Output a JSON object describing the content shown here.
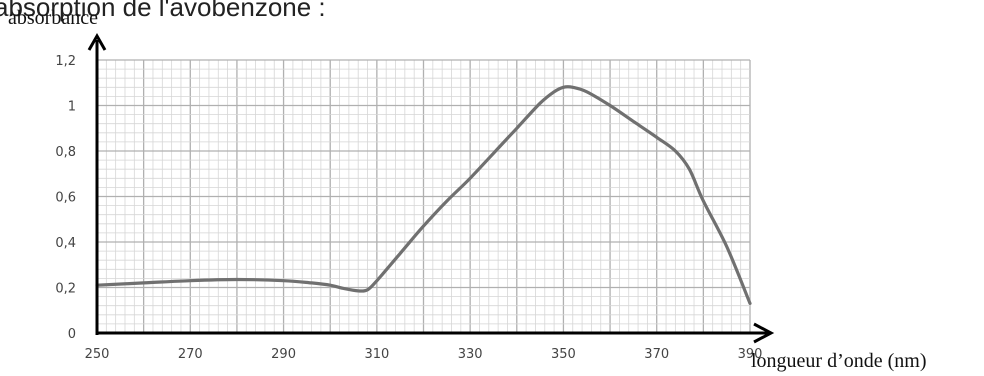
{
  "header_fragment": "absorption de l'avobenzone :",
  "chart_data": {
    "type": "line",
    "title": "",
    "xlabel": "longueur d’onde (nm)",
    "ylabel": "absorbance",
    "xlim": [
      250,
      390
    ],
    "ylim": [
      0,
      1.2
    ],
    "x_ticks": [
      "250",
      "270",
      "290",
      "310",
      "330",
      "350",
      "370",
      "390"
    ],
    "y_ticks": [
      "0",
      "0,2",
      "0,4",
      "0,6",
      "0,8",
      "1",
      "1,2"
    ],
    "grid": true,
    "legend": "none",
    "line_color": "#707070",
    "series": [
      {
        "x": [
          250,
          260,
          270,
          280,
          290,
          296,
          300,
          303,
          306,
          308,
          310,
          315,
          320,
          325,
          330,
          335,
          340,
          345,
          348,
          350,
          352,
          355,
          360,
          365,
          370,
          374,
          377,
          380,
          385,
          390
        ],
        "y": [
          0.21,
          0.22,
          0.23,
          0.235,
          0.23,
          0.22,
          0.21,
          0.195,
          0.185,
          0.19,
          0.23,
          0.35,
          0.47,
          0.58,
          0.68,
          0.79,
          0.9,
          1.01,
          1.06,
          1.08,
          1.08,
          1.06,
          1.0,
          0.93,
          0.86,
          0.8,
          0.72,
          0.58,
          0.38,
          0.13
        ]
      }
    ]
  }
}
